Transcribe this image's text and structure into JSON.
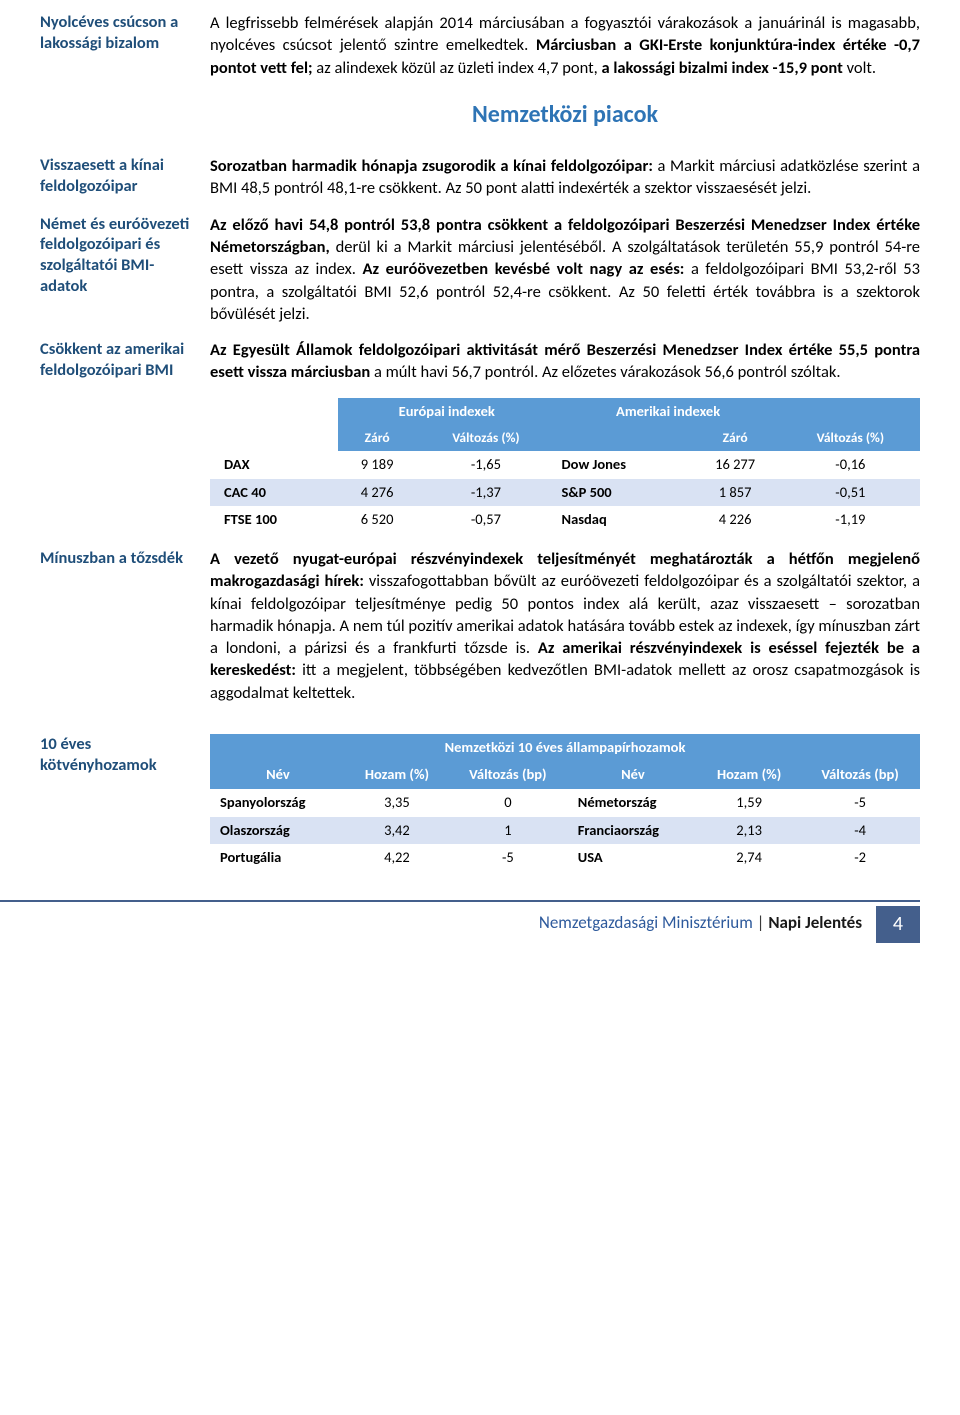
{
  "colors": {
    "sidebar_text": "#1f4e79",
    "section_title": "#2e74b5",
    "table_header_bg": "#5b9bd5",
    "table_band_bg": "#d9e2f3",
    "footer_rule": "#445f8c",
    "footer_page_bg": "#445f8c"
  },
  "sections": [
    {
      "sidebar": "Nyolcéves csúcson a lakossági bizalom",
      "body_plain": "A legfrissebb felmérések alapján 2014 márciusában a fogyasztói várakozások a januárinál is magasabb, nyolcéves csúcsot jelentő szintre emelkedtek. ",
      "body_bold": "Márciusban a GKI-Erste konjunktúra-index értéke -0,7 pontot vett fel;",
      "body_tail_plain": " az alindexek közül az üzleti index 4,7 pont, ",
      "body_tail_bold": "a lakossági bizalmi index -15,9 pont",
      "body_tail_end": " volt."
    }
  ],
  "section_title": "Nemzetközi piacok",
  "sections2": [
    {
      "sidebar": "Visszaesett a kínai feldolgozóipar",
      "bold": "Sorozatban harmadik hónapja zsugorodik a kínai feldolgozóipar:",
      "plain": " a Markit márciusi adatközlése szerint a BMI 48,5 pontról 48,1-re csökkent. Az 50 pont alatti indexérték a szektor visszaesését jelzi."
    },
    {
      "sidebar": "Német és euróövezeti feldolgozóipari és szolgáltatói BMI-adatok",
      "bold": "Az előző havi 54,8 pontról 53,8 pontra csökkent a feldolgozóipari Beszerzési Menedzser Index értéke Németországban,",
      "plain": " derül ki a Markit márciusi jelentéséből. A szolgáltatások területén 55,9 pontról 54-re esett vissza az index. ",
      "bold2": "Az euróövezetben kevésbé volt nagy az esés:",
      "plain2": " a feldolgozóipari BMI 53,2-ről 53 pontra, a szolgáltatói BMI 52,6 pontról 52,4-re csökkent. Az 50 feletti érték továbbra is a szektorok bővülését jelzi."
    },
    {
      "sidebar": "Csökkent az amerikai feldolgozóipari BMI",
      "bold": "Az Egyesült Államok feldolgozóipari aktivitását mérő Beszerzési Menedzser Index értéke 55,5 pontra esett vissza márciusban",
      "plain": " a múlt havi 56,7 pontról. Az előzetes várakozások 56,6 pontról szóltak."
    }
  ],
  "indexes_table": {
    "header_eu": "Európai indexek",
    "header_us": "Amerikai indexek",
    "sub_close": "Záró",
    "sub_change": "Változás (%)",
    "sub_change_wrap": "Változás (%)",
    "rows": [
      {
        "eu_name": "DAX",
        "eu_close": "9 189",
        "eu_chg": "-1,65",
        "us_name": "Dow Jones",
        "us_close": "16 277",
        "us_chg": "-0,16",
        "band": false
      },
      {
        "eu_name": "CAC 40",
        "eu_close": "4 276",
        "eu_chg": "-1,37",
        "us_name": "S&P 500",
        "us_close": "1 857",
        "us_chg": "-0,51",
        "band": true
      },
      {
        "eu_name": "FTSE 100",
        "eu_close": "6 520",
        "eu_chg": "-0,57",
        "us_name": "Nasdaq",
        "us_close": "4 226",
        "us_chg": "-1,19",
        "band": false
      }
    ]
  },
  "minusz": {
    "sidebar": "Mínuszban a tőzsdék",
    "bold1": "A vezető nyugat-európai részvényindexek teljesítményét meghatározták a hétfőn megjelenő makrogazdasági hírek:",
    "plain1": " visszafogottabban bővült az euróövezeti feldolgozóipar és a szolgáltatói szektor, a kínai feldolgozóipar teljesítménye pedig 50 pontos index alá került, azaz visszaesett – sorozatban harmadik hónapja. A nem túl pozitív amerikai adatok hatására tovább estek az indexek, így mínuszban zárt a londoni, a párizsi és a frankfurti tőzsde is. ",
    "bold2": "Az amerikai részvényindexek is eséssel fejezték be a kereskedést:",
    "plain2": " itt a megjelent, többségében kedvezőtlen BMI-adatok mellett az orosz csapatmozgások is aggodalmat keltettek."
  },
  "bonds": {
    "sidebar": "10 éves kötvényhozamok",
    "title": "Nemzetközi 10 éves állampapírhozamok",
    "head_name": "Név",
    "head_yield": "Hozam (%)",
    "head_chg": "Változás (bp)",
    "rows": [
      {
        "l_name": "Spanyolország",
        "l_yield": "3,35",
        "l_chg": "0",
        "r_name": "Németország",
        "r_yield": "1,59",
        "r_chg": "-5",
        "band": false
      },
      {
        "l_name": "Olaszország",
        "l_yield": "3,42",
        "l_chg": "1",
        "r_name": "Franciaország",
        "r_yield": "2,13",
        "r_chg": "-4",
        "band": true
      },
      {
        "l_name": "Portugália",
        "l_yield": "4,22",
        "l_chg": "-5",
        "r_name": "USA",
        "r_yield": "2,74",
        "r_chg": "-2",
        "band": false
      }
    ]
  },
  "footer": {
    "ministry": "Nemzetgazdasági Minisztérium",
    "sep": " | ",
    "report": "Napi Jelentés",
    "page": "4"
  }
}
